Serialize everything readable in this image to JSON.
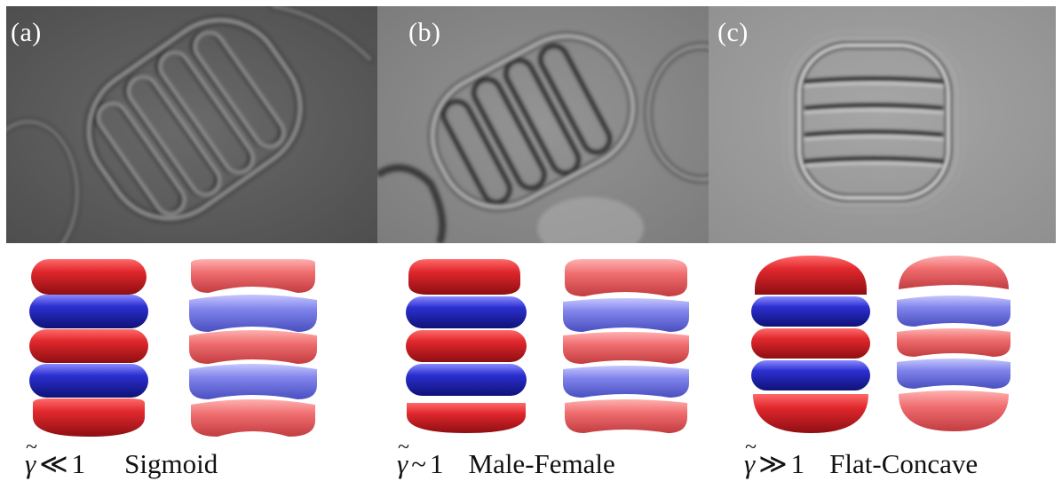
{
  "panels": [
    {
      "label": "(a)",
      "gamma_symbol": "γ",
      "tilde": "~",
      "relation": "≪",
      "value": "1",
      "name": "Sigmoid"
    },
    {
      "label": "(b)",
      "gamma_symbol": "γ",
      "tilde": "~",
      "relation": "~",
      "value": "1",
      "name": "Male-Female"
    },
    {
      "label": "(c)",
      "gamma_symbol": "γ",
      "tilde": "~",
      "relation": "≫",
      "value": "1",
      "name": "Flat-Concave"
    }
  ],
  "colors": {
    "red_disk": "#d9262b",
    "blue_disk": "#2b2fd0",
    "photo_bg_a": "#5e5e5e",
    "photo_bg_b": "#8a8a8a",
    "photo_bg_c": "#9d9d9d"
  }
}
